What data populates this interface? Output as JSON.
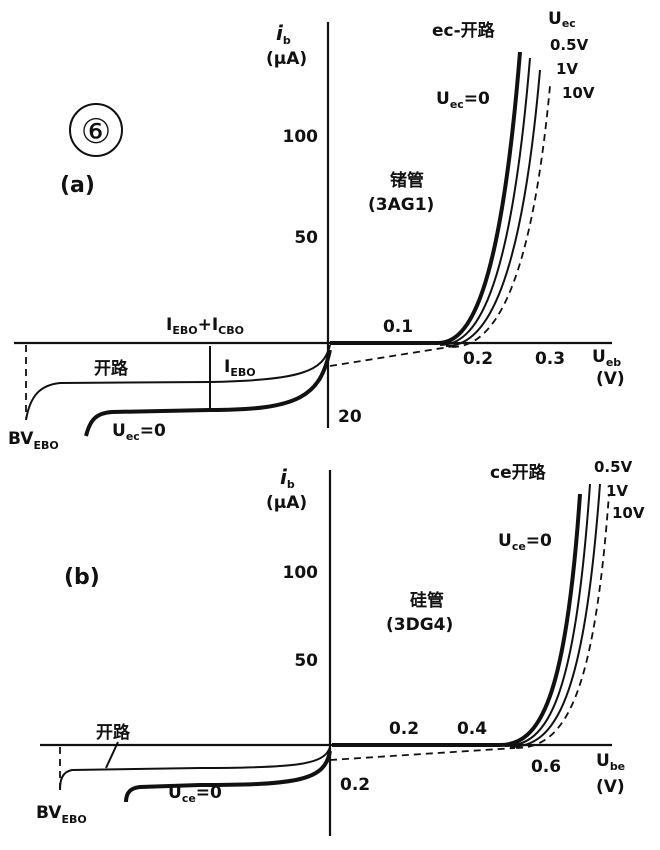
{
  "figure_number": "⑥",
  "panel_a": {
    "label": "(a)",
    "y_axis": {
      "symbol": "i",
      "sub": "b",
      "unit": "(μA)"
    },
    "yticks": [
      "100",
      "50"
    ],
    "neg_tick": "20",
    "xticks": [
      "0.1",
      "0.2",
      "0.3"
    ],
    "x_axis": {
      "symbol": "U",
      "sub": "eb",
      "unit": "(V)"
    },
    "open_label": "ec-开路",
    "param": {
      "symbol": "U",
      "sub": "ec"
    },
    "curve_labels": [
      "0.5V",
      "1V",
      "10V"
    ],
    "zero_label": {
      "symbol": "U",
      "sub": "ec",
      "rest": "=0"
    },
    "device": "锗管",
    "model": "(3AG1)",
    "leak_total": [
      [
        "I",
        "EBO"
      ],
      [
        "+I",
        "CBO"
      ]
    ],
    "leak_ebo": [
      "I",
      "EBO"
    ],
    "reverse_open": "开路",
    "reverse_zero": {
      "symbol": "U",
      "sub": "ec",
      "rest": "=0"
    },
    "breakdown": [
      "BV",
      "EBO"
    ]
  },
  "panel_b": {
    "label": "(b)",
    "y_axis": {
      "symbol": "i",
      "sub": "b",
      "unit": "(μA)"
    },
    "yticks": [
      "100",
      "50"
    ],
    "neg_tick": "0.2",
    "xticks": [
      "0.2",
      "0.4",
      "0.6"
    ],
    "x_axis": {
      "symbol": "U",
      "sub": "be",
      "unit": "(V)"
    },
    "open_label": "ce开路",
    "curve_labels": [
      "0.5V",
      "1V",
      "10V"
    ],
    "zero_label": {
      "symbol": "U",
      "sub": "ce",
      "rest": "=0"
    },
    "device": "硅管",
    "model": "(3DG4)",
    "reverse_open": "开路",
    "reverse_zero": {
      "symbol": "U",
      "sub": "ce",
      "rest": "=0"
    },
    "breakdown": [
      "BV",
      "EBO"
    ]
  }
}
